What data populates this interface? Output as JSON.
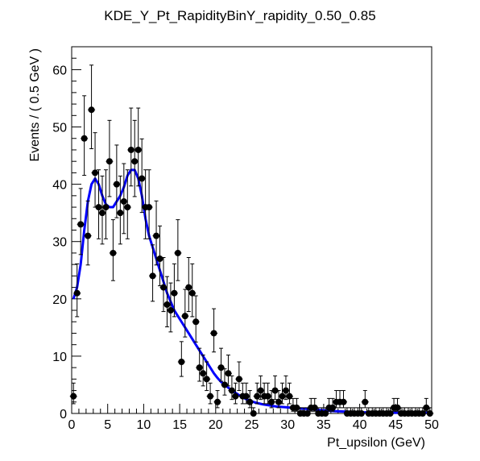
{
  "chart_data": {
    "type": "scatter",
    "title": "KDE_Y_Pt_RapidityBinY_rapidity_0.50_0.85",
    "xlabel": "Pt_upsilon (GeV)",
    "ylabel": "Events / ( 0.5 GeV )",
    "xlim": [
      0,
      50
    ],
    "ylim": [
      0,
      64
    ],
    "x_ticks": [
      0,
      5,
      10,
      15,
      20,
      25,
      30,
      35,
      40,
      45,
      50
    ],
    "y_ticks": [
      0,
      10,
      20,
      30,
      40,
      50,
      60
    ],
    "grid": false,
    "series": [
      {
        "kind": "points_with_errors",
        "color": "#000000",
        "x": [
          0.25,
          0.75,
          1.25,
          1.75,
          2.25,
          2.75,
          3.25,
          3.75,
          4.25,
          4.75,
          5.25,
          5.75,
          6.25,
          6.75,
          7.25,
          7.75,
          8.25,
          8.75,
          9.25,
          9.75,
          10.25,
          10.75,
          11.25,
          11.75,
          12.25,
          12.75,
          13.25,
          13.75,
          14.25,
          14.75,
          15.25,
          15.75,
          16.25,
          16.75,
          17.25,
          17.75,
          18.25,
          18.75,
          19.25,
          19.75,
          20.25,
          20.75,
          21.25,
          21.75,
          22.25,
          22.75,
          23.25,
          23.75,
          24.25,
          24.75,
          25.25,
          25.75,
          26.25,
          26.75,
          27.25,
          27.75,
          28.25,
          28.75,
          29.25,
          29.75,
          30.25,
          30.75,
          31.25,
          31.75,
          32.25,
          32.75,
          33.25,
          33.75,
          34.25,
          34.75,
          35.25,
          35.75,
          36.25,
          36.75,
          37.25,
          37.75,
          38.25,
          38.75,
          39.25,
          39.75,
          40.25,
          40.75,
          41.25,
          41.75,
          42.25,
          42.75,
          43.25,
          43.75,
          44.25,
          44.75,
          45.25,
          45.75,
          46.25,
          46.75,
          47.25,
          47.75,
          48.25,
          48.75,
          49.25,
          49.75
        ],
        "y": [
          3,
          21,
          33,
          48,
          31,
          53,
          42,
          36,
          35,
          36,
          44,
          28,
          40,
          35,
          37,
          36,
          46,
          44,
          46,
          41,
          36,
          36,
          24,
          31,
          27,
          22,
          19,
          18,
          21,
          28,
          9,
          17,
          22,
          21,
          16,
          8,
          7,
          6,
          3,
          14,
          2,
          8,
          5,
          7,
          4,
          3,
          6,
          3,
          3,
          2,
          0,
          3,
          4,
          3,
          3,
          2,
          4,
          2,
          3,
          4,
          3,
          1,
          1,
          0,
          0,
          0,
          1,
          1,
          0,
          0,
          0,
          1,
          1,
          2,
          2,
          2,
          0,
          0,
          0,
          0,
          0,
          2,
          0,
          0,
          0,
          0,
          0,
          0,
          0,
          1,
          1,
          0,
          0,
          0,
          0,
          0,
          0,
          0,
          1,
          0
        ]
      },
      {
        "kind": "curve",
        "color": "#0000ff",
        "x": [
          0.25,
          0.75,
          1.25,
          1.75,
          2.25,
          2.75,
          3.25,
          3.75,
          4.25,
          4.75,
          5.25,
          5.75,
          6.25,
          6.75,
          7.25,
          7.75,
          8.25,
          8.75,
          9.25,
          9.75,
          10.25,
          10.75,
          11.25,
          11.75,
          12.25,
          12.75,
          13.25,
          13.75,
          14.25,
          14.75,
          15.25,
          15.75,
          16.25,
          16.75,
          17.25,
          17.75,
          18.25,
          18.75,
          19.25,
          19.75,
          20.25,
          20.75,
          21.25,
          21.75,
          22.25,
          22.75,
          23.25,
          23.75,
          24.25,
          24.75,
          25.5,
          26.5,
          27.5,
          28.5,
          29.5,
          30.5,
          31.5,
          32.5,
          33.5,
          34.5,
          35.5,
          36.5,
          37.5,
          38.5,
          39.5,
          40.5,
          41.5,
          42.5,
          43.5,
          44.5,
          45.5,
          46.5,
          47.5,
          48.5,
          49.5,
          50
        ],
        "y": [
          20,
          22,
          26,
          32,
          37,
          40,
          41,
          40,
          38,
          36.5,
          36,
          36,
          37,
          38,
          39.5,
          41.5,
          42.5,
          42.5,
          41,
          38,
          34,
          31,
          29,
          27,
          25,
          23,
          21,
          19.5,
          18,
          17,
          16,
          15,
          14,
          13,
          12,
          11,
          10,
          9,
          8,
          7,
          6.2,
          5.5,
          5,
          4.5,
          4,
          3.6,
          3.2,
          2.8,
          2.5,
          2.2,
          1.9,
          1.6,
          1.4,
          1.2,
          1.1,
          1,
          0.9,
          0.8,
          0.7,
          0.6,
          0.5,
          0.4,
          0.35,
          0.3,
          0.25,
          0.2,
          0.2,
          0.15,
          0.15,
          0.12,
          0.1,
          0.1,
          0.1,
          0.1,
          0.1,
          0.1
        ]
      }
    ]
  }
}
